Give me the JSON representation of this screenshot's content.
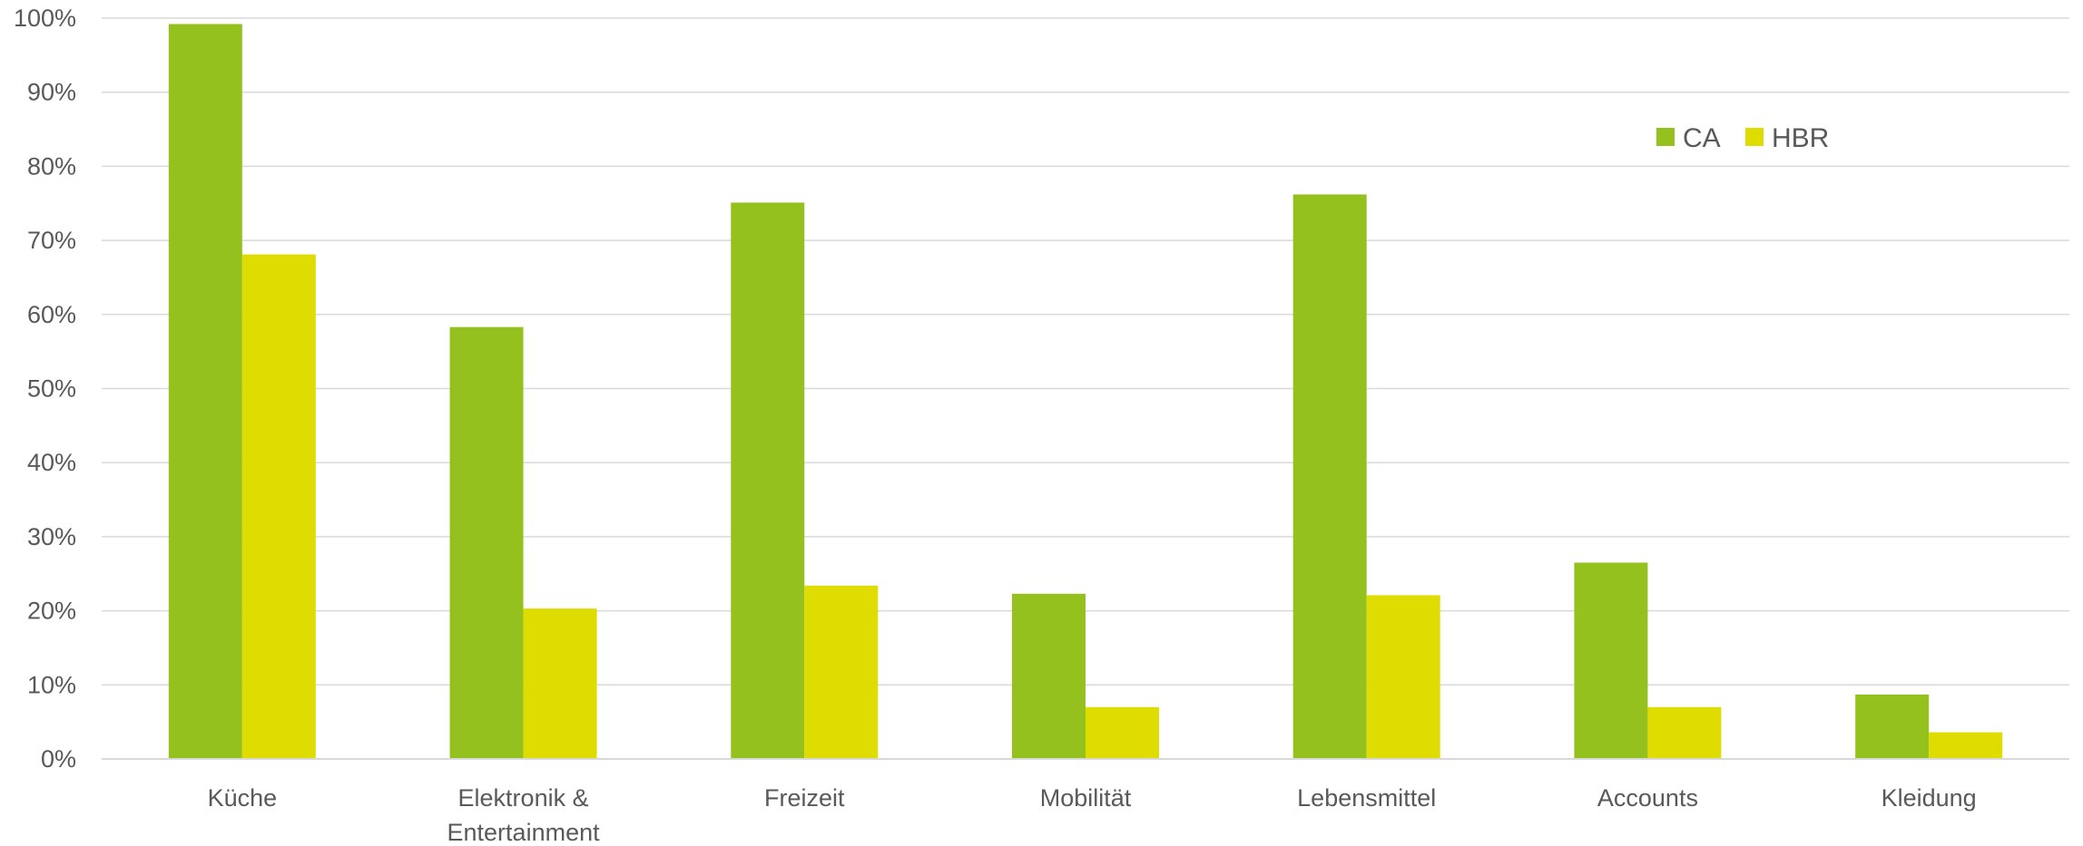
{
  "chart_data": {
    "type": "bar",
    "categories": [
      [
        "Küche"
      ],
      [
        "Elektronik &",
        "Entertainment"
      ],
      [
        "Freizeit"
      ],
      [
        "Mobilität"
      ],
      [
        "Lebensmittel"
      ],
      [
        "Accounts"
      ],
      [
        "Kleidung"
      ]
    ],
    "series": [
      {
        "name": "CA",
        "color": "#95c11f",
        "values": [
          99.2,
          58.3,
          75.1,
          22.3,
          76.2,
          26.5,
          8.7
        ]
      },
      {
        "name": "HBR",
        "color": "#dedc00",
        "values": [
          68.1,
          20.3,
          23.4,
          7.0,
          22.1,
          7.0,
          3.6
        ]
      }
    ],
    "ylim": [
      0,
      100
    ],
    "yticks": [
      0,
      10,
      20,
      30,
      40,
      50,
      60,
      70,
      80,
      90,
      100
    ],
    "ytick_labels": [
      "0%",
      "10%",
      "20%",
      "30%",
      "40%",
      "50%",
      "60%",
      "70%",
      "80%",
      "90%",
      "100%"
    ],
    "title": "",
    "xlabel": "",
    "ylabel": "",
    "grid": true,
    "gridline_color": "#d9d9d9",
    "legend_position": "top-right"
  }
}
